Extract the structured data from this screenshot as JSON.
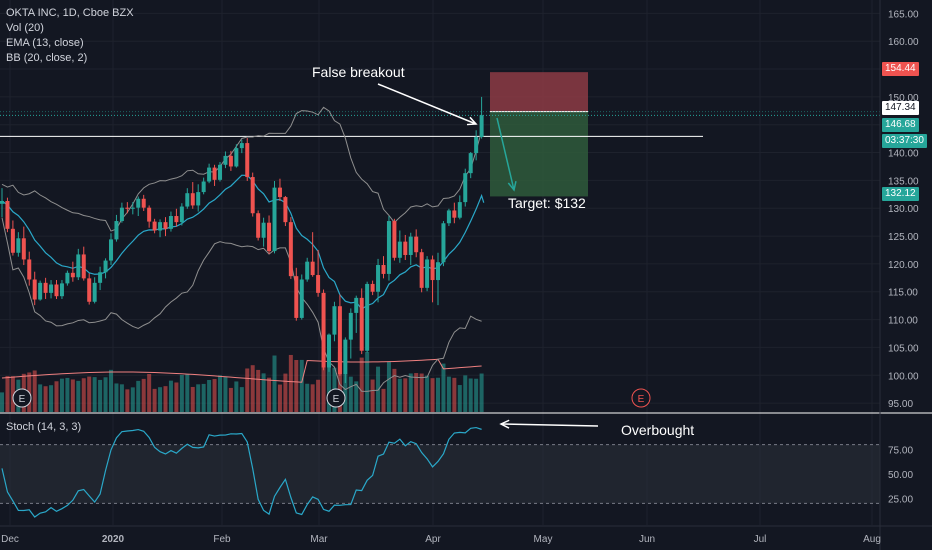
{
  "legend": {
    "symbol": "OKTA INC, 1D, Cboe BZX",
    "vol": "Vol (20)",
    "ema": "EMA (13, close)",
    "bb": "BB (20, close, 2)"
  },
  "stoch_label": "Stoch (14, 3, 3)",
  "annotations": {
    "false_breakout": "False breakout",
    "target": "Target: $132",
    "overbought": "Overbought"
  },
  "price_tags": {
    "stop": "154.44",
    "entry": "147.34",
    "current": "146.68",
    "countdown": "03:37:30",
    "target": "132.12"
  },
  "earnings_marker": "E",
  "colors": {
    "background": "#131722",
    "up": "#26a69a",
    "down": "#ef5350",
    "bb": "#8f8f8f",
    "ema": "#2aa8c9",
    "stoch": "#2aa8c9",
    "stop_zone": "#8d3b44",
    "target_zone": "#2f5a3b"
  },
  "chart_data": {
    "type": "candlestick",
    "price_axis": {
      "ticks": [
        "165.00",
        "160.00",
        "155.00",
        "150.00",
        "145.00",
        "140.00",
        "135.00",
        "130.00",
        "125.00",
        "120.00",
        "115.00",
        "110.00",
        "105.00",
        "100.00",
        "95.00"
      ],
      "range": [
        93.4,
        167.4
      ]
    },
    "time_axis": {
      "ticks": [
        "Dec",
        "2020",
        "Feb",
        "Mar",
        "Apr",
        "May",
        "Jun",
        "Jul",
        "Aug"
      ]
    },
    "stoch_axis": {
      "ticks": [
        "75.00",
        "50.00",
        "25.00"
      ],
      "range": [
        0,
        100
      ],
      "bands": [
        20,
        80
      ]
    },
    "candles": [
      [
        130.8,
        133.6,
        128.4,
        131.3
      ],
      [
        131.3,
        131.9,
        125.7,
        126.3
      ],
      [
        126.3,
        127.8,
        121.5,
        122.0
      ],
      [
        122.0,
        125.7,
        121.3,
        124.6
      ],
      [
        124.6,
        126.7,
        119.8,
        120.8
      ],
      [
        120.8,
        122.2,
        116.1,
        117.2
      ],
      [
        117.2,
        118.6,
        112.6,
        113.6
      ],
      [
        113.6,
        117.0,
        113.4,
        116.6
      ],
      [
        116.6,
        117.5,
        113.7,
        114.8
      ],
      [
        114.8,
        117.1,
        113.8,
        116.3
      ],
      [
        116.3,
        117.1,
        113.7,
        114.2
      ],
      [
        114.2,
        117.1,
        113.7,
        116.5
      ],
      [
        116.5,
        118.8,
        116.1,
        118.4
      ],
      [
        118.4,
        120.4,
        116.8,
        117.6
      ],
      [
        117.6,
        122.7,
        117.1,
        121.7
      ],
      [
        121.7,
        123.1,
        117.0,
        117.4
      ],
      [
        117.4,
        118.3,
        112.7,
        113.2
      ],
      [
        113.2,
        117.6,
        112.9,
        116.6
      ],
      [
        116.6,
        119.5,
        115.3,
        118.5
      ],
      [
        118.5,
        121.0,
        117.4,
        120.6
      ],
      [
        120.6,
        125.5,
        119.8,
        124.4
      ],
      [
        124.4,
        128.8,
        124.0,
        127.7
      ],
      [
        127.7,
        131.0,
        127.4,
        130.1
      ],
      [
        130.1,
        131.1,
        129.1,
        129.9
      ],
      [
        129.9,
        131.1,
        128.9,
        130.1
      ],
      [
        130.1,
        132.1,
        128.6,
        131.7
      ],
      [
        131.7,
        132.4,
        129.5,
        130.1
      ],
      [
        130.1,
        130.5,
        126.5,
        127.6
      ],
      [
        127.6,
        128.1,
        125.5,
        126.0
      ],
      [
        126.0,
        128.0,
        124.8,
        127.5
      ],
      [
        127.5,
        128.4,
        125.0,
        126.3
      ],
      [
        126.3,
        129.4,
        125.8,
        128.6
      ],
      [
        128.6,
        129.9,
        126.7,
        127.5
      ],
      [
        127.5,
        130.9,
        126.9,
        130.3
      ],
      [
        130.3,
        133.6,
        129.9,
        132.7
      ],
      [
        132.7,
        134.7,
        129.9,
        130.5
      ],
      [
        130.5,
        134.3,
        129.4,
        132.9
      ],
      [
        132.9,
        135.5,
        132.5,
        134.8
      ],
      [
        134.8,
        138.0,
        134.5,
        137.3
      ],
      [
        137.3,
        137.8,
        134.0,
        135.1
      ],
      [
        135.1,
        138.3,
        134.8,
        137.8
      ],
      [
        137.8,
        140.2,
        137.2,
        139.4
      ],
      [
        139.4,
        140.3,
        136.7,
        137.5
      ],
      [
        137.5,
        141.5,
        137.3,
        140.8
      ],
      [
        140.8,
        142.3,
        139.9,
        141.7
      ],
      [
        141.7,
        142.6,
        134.9,
        135.6
      ],
      [
        135.6,
        136.4,
        128.5,
        129.1
      ],
      [
        129.1,
        129.6,
        124.2,
        124.7
      ],
      [
        124.7,
        128.3,
        123.1,
        127.4
      ],
      [
        127.4,
        128.7,
        121.8,
        122.3
      ],
      [
        122.3,
        134.9,
        121.9,
        133.7
      ],
      [
        133.7,
        135.3,
        131.3,
        132.0
      ],
      [
        132.0,
        132.2,
        126.8,
        127.5
      ],
      [
        127.5,
        128.4,
        117.3,
        117.8
      ],
      [
        117.8,
        119.3,
        109.8,
        110.3
      ],
      [
        110.3,
        118.1,
        110.0,
        117.2
      ],
      [
        117.2,
        121.1,
        116.8,
        120.4
      ],
      [
        120.4,
        125.7,
        117.7,
        118.0
      ],
      [
        118.0,
        122.5,
        114.1,
        114.8
      ],
      [
        114.8,
        115.4,
        100.9,
        101.4
      ],
      [
        101.4,
        107.5,
        100.6,
        107.3
      ],
      [
        107.3,
        113.2,
        106.1,
        112.4
      ],
      [
        112.4,
        114.5,
        99.9,
        100.2
      ],
      [
        100.2,
        106.8,
        98.6,
        106.4
      ],
      [
        106.4,
        112.0,
        103.0,
        111.2
      ],
      [
        111.2,
        114.3,
        107.6,
        113.9
      ],
      [
        113.9,
        115.6,
        103.8,
        104.4
      ],
      [
        104.4,
        116.8,
        104.1,
        116.4
      ],
      [
        116.4,
        117.0,
        114.4,
        115.0
      ],
      [
        115.0,
        120.9,
        113.1,
        119.8
      ],
      [
        119.8,
        121.4,
        117.4,
        118.2
      ],
      [
        118.2,
        128.6,
        117.0,
        127.7
      ],
      [
        127.7,
        128.1,
        120.6,
        121.1
      ],
      [
        121.1,
        126.0,
        120.2,
        124.0
      ],
      [
        124.0,
        125.2,
        120.7,
        121.6
      ],
      [
        121.6,
        125.6,
        119.8,
        124.9
      ],
      [
        124.9,
        126.2,
        121.2,
        122.1
      ],
      [
        122.1,
        122.7,
        114.9,
        115.7
      ],
      [
        115.7,
        121.4,
        115.1,
        120.8
      ],
      [
        120.8,
        121.5,
        113.1,
        117.1
      ],
      [
        117.1,
        122.0,
        112.6,
        120.3
      ],
      [
        120.3,
        127.7,
        119.6,
        127.3
      ],
      [
        127.3,
        129.9,
        126.8,
        129.6
      ],
      [
        129.6,
        131.0,
        127.3,
        128.3
      ],
      [
        128.3,
        132.3,
        128.0,
        131.1
      ],
      [
        131.1,
        137.1,
        130.3,
        136.3
      ],
      [
        136.3,
        140.1,
        135.4,
        139.9
      ],
      [
        139.9,
        144.0,
        138.6,
        142.8
      ],
      [
        142.8,
        150.0,
        142.5,
        146.7
      ]
    ],
    "earnings_markers_x": [
      "Dec",
      "Mar",
      "May"
    ],
    "trade_setup": {
      "stop": 154.44,
      "entry": 147.34,
      "target": 132.12,
      "resistance": 142.9
    }
  }
}
